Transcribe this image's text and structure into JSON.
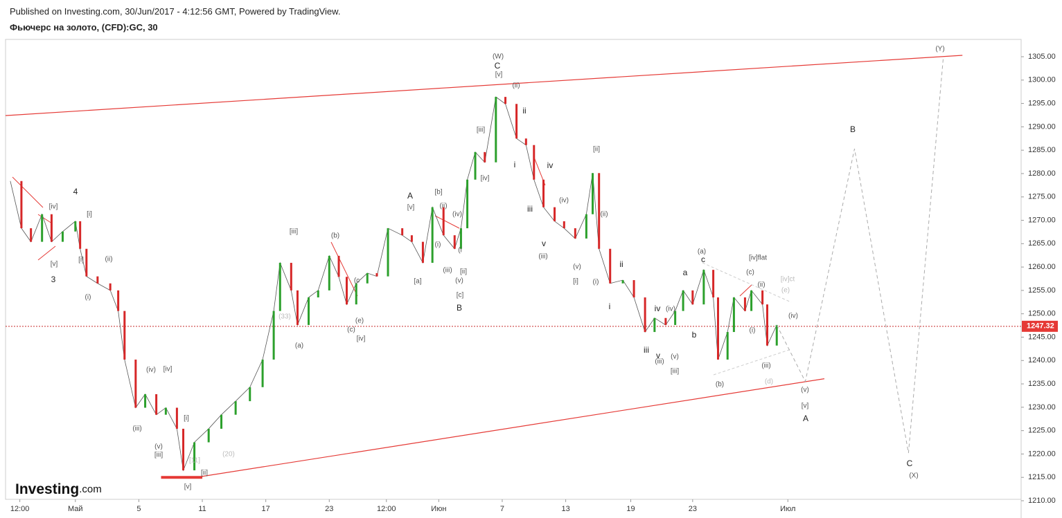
{
  "header": {
    "published": "Published on Investing.com, 30/Jun/2017 - 4:12:56 GMT, Powered by TradingView.",
    "symbol": "Фьючерс на золото, (CFD):GC, 30"
  },
  "logo": {
    "name": "Investing",
    "domain": ".com"
  },
  "chart_data": {
    "type": "line",
    "price": {
      "x": [
        0.3,
        1.0,
        1.6,
        2.3,
        2.9,
        3.6,
        4.4,
        4.7,
        5.1,
        5.8,
        6.6,
        7.1,
        7.5,
        8.2,
        8.8,
        9.5,
        10.1,
        10.8,
        11.2,
        11.9,
        12.8,
        13.6,
        14.5,
        15.4,
        16.2,
        16.9,
        17.3,
        18.0,
        18.4,
        19.1,
        19.7,
        20.4,
        21.0,
        21.5,
        22.1,
        22.8,
        23.4,
        24.1,
        25.0,
        25.6,
        26.3,
        26.9,
        27.6,
        28.3,
        28.7,
        29.1,
        29.6,
        30.2,
        30.9,
        31.5,
        32.2,
        32.8,
        33.3,
        33.9,
        34.6,
        35.2,
        35.9,
        36.6,
        37.0,
        37.4,
        38.1,
        38.9,
        39.6,
        40.3,
        40.9,
        41.6,
        42.2,
        42.7,
        43.3,
        44.0,
        44.6,
        44.9,
        45.5,
        45.9,
        46.6,
        47.0,
        47.7,
        48.0,
        48.6
      ],
      "values": [
        1278.4,
        1268.3,
        1265.4,
        1271.3,
        1265.4,
        1267.6,
        1269.8,
        1263.9,
        1258.0,
        1256.5,
        1255.0,
        1250.6,
        1240.2,
        1229.9,
        1232.8,
        1228.4,
        1229.9,
        1225.4,
        1216.5,
        1222.5,
        1225.4,
        1228.4,
        1231.3,
        1234.3,
        1240.2,
        1250.6,
        1260.9,
        1255.0,
        1247.6,
        1253.5,
        1255.0,
        1262.4,
        1257.9,
        1252.0,
        1256.5,
        1258.7,
        1258.0,
        1268.3,
        1266.8,
        1265.4,
        1260.9,
        1272.8,
        1266.8,
        1263.9,
        1268.3,
        1278.7,
        1284.6,
        1282.4,
        1296.4,
        1294.9,
        1287.5,
        1286.1,
        1278.7,
        1272.8,
        1269.8,
        1268.3,
        1266.1,
        1271.3,
        1280.1,
        1263.9,
        1256.5,
        1257.2,
        1253.5,
        1246.1,
        1249.1,
        1247.6,
        1250.6,
        1255.0,
        1252.0,
        1259.4,
        1253.5,
        1240.2,
        1246.1,
        1253.5,
        1250.6,
        1255.0,
        1252.0,
        1243.2,
        1247.6
      ],
      "up_color": "#2ca02c",
      "down_color": "#d62728"
    },
    "projection": {
      "x": [
        48.6,
        50.4,
        53.5,
        56.9,
        59.1
      ],
      "values": [
        1247.6,
        1235.5,
        1285.3,
        1220.2,
        1305.0
      ],
      "color": "#aaaaaa"
    },
    "trendlines": [
      {
        "x": [
          0,
          60.3
        ],
        "values": [
          1292.4,
          1305.3
        ]
      },
      {
        "x": [
          12.0,
          51.6
        ],
        "values": [
          1215.0,
          1236.1
        ]
      }
    ],
    "support": {
      "x": [
        9.8,
        12.4
      ],
      "value": 1215
    },
    "last_price": {
      "value": 1247.32,
      "label": "1247.32"
    },
    "line_color": "#e53935",
    "xlim": [
      0,
      64
    ],
    "ylim": [
      1210.3,
      1308.7
    ],
    "xticks": [
      {
        "value": 0.9,
        "label": "12:00"
      },
      {
        "value": 4.4,
        "label": "Май"
      },
      {
        "value": 8.4,
        "label": "5"
      },
      {
        "value": 12.4,
        "label": "11"
      },
      {
        "value": 16.4,
        "label": "17"
      },
      {
        "value": 20.4,
        "label": "23"
      },
      {
        "value": 24.0,
        "label": "12:00"
      },
      {
        "value": 27.3,
        "label": "Июн"
      },
      {
        "value": 31.3,
        "label": "7"
      },
      {
        "value": 35.3,
        "label": "13"
      },
      {
        "value": 39.4,
        "label": "19"
      },
      {
        "value": 43.3,
        "label": "23"
      },
      {
        "value": 49.3,
        "label": "Июл"
      }
    ],
    "yticks": [
      {
        "value": 1210,
        "label": "1210.00"
      },
      {
        "value": 1215,
        "label": "1215.00"
      },
      {
        "value": 1220,
        "label": "1220.00"
      },
      {
        "value": 1225,
        "label": "1225.00"
      },
      {
        "value": 1230,
        "label": "1230.00"
      },
      {
        "value": 1235,
        "label": "1235.00"
      },
      {
        "value": 1240,
        "label": "1240.00"
      },
      {
        "value": 1245,
        "label": "1245.00"
      },
      {
        "value": 1250,
        "label": "1250.00"
      },
      {
        "value": 1255,
        "label": "1255.00"
      },
      {
        "value": 1260,
        "label": "1260.00"
      },
      {
        "value": 1265,
        "label": "1265.00"
      },
      {
        "value": 1270,
        "label": "1270.00"
      },
      {
        "value": 1275,
        "label": "1275.00"
      },
      {
        "value": 1280,
        "label": "1280.00"
      },
      {
        "value": 1285,
        "label": "1285.00"
      },
      {
        "value": 1290,
        "label": "1290.00"
      },
      {
        "value": 1295,
        "label": "1295.00"
      },
      {
        "value": 1300,
        "label": "1300.00"
      },
      {
        "value": 1305,
        "label": "1305.00"
      }
    ],
    "annotations": [
      "(W)",
      "C",
      "[v]",
      "(ii)",
      "ii",
      "i",
      "iv",
      "iii",
      "(iv)",
      "v",
      "(iii)",
      "(v)",
      "[i]",
      "(i)",
      "[ii]",
      "(ii)",
      "ii",
      "i",
      "iii",
      "v",
      "(iii)",
      "(v)",
      "[iii]",
      "iv",
      "(iv)",
      "a",
      "b",
      "(a)",
      "c",
      "(b)",
      "[iv]flat",
      "(c)",
      "(ii)",
      "(i)",
      "(iii)",
      "(iv)",
      "[iv]ct",
      "(e)",
      "(d)",
      "(v)",
      "[v]",
      "A",
      "B",
      "C",
      "(X)",
      "(Y)",
      "[iv]",
      "4",
      "[i]",
      "[v]",
      "[i]",
      "(ii)",
      "3",
      "(i)",
      "(iv)",
      "[iv]",
      "(iii)",
      "[i]",
      "(v)",
      "[iii]",
      "[11]",
      "(20)",
      "[ii]",
      "[v]",
      "[iii]",
      "(b)",
      "(c",
      "(e)",
      "(c)",
      "[iv]",
      "(a)",
      "(33)",
      "A",
      "[v]",
      "[b]",
      "(ii)",
      "(iv)",
      "(i)",
      "(iii)",
      "[a]",
      "(v)",
      "[c]",
      "B",
      "[ii]",
      "(i",
      "[iii]",
      "[iv]"
    ]
  }
}
